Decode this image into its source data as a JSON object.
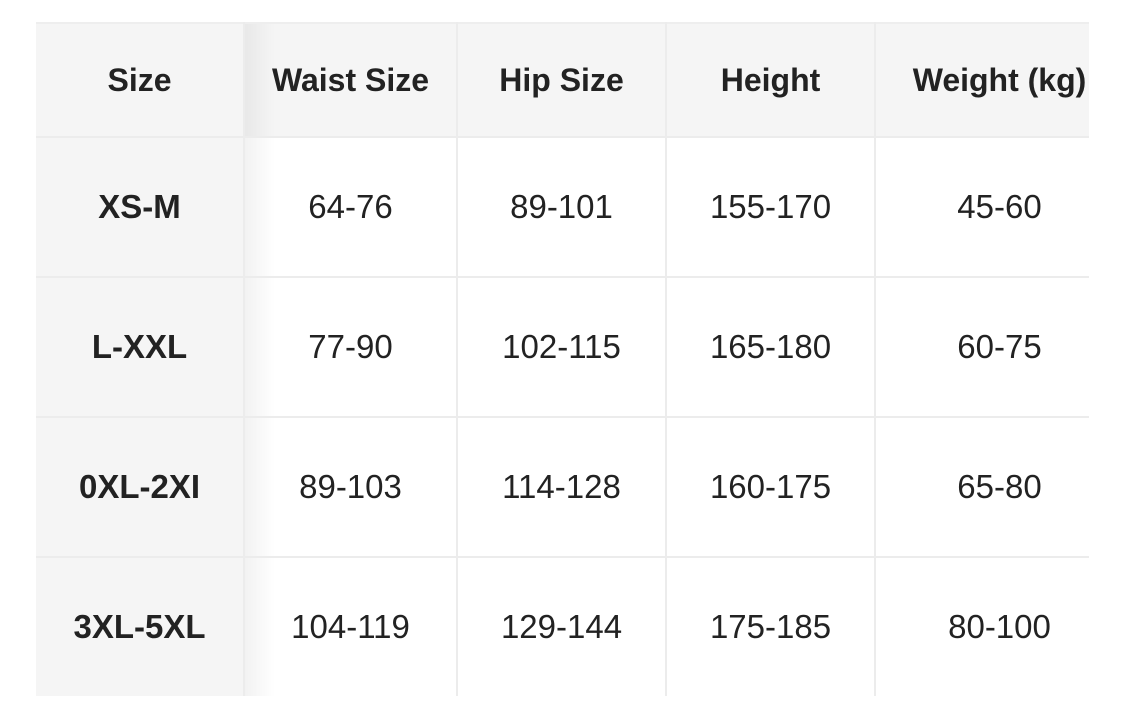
{
  "table": {
    "headers": [
      "Size",
      "Waist Size",
      "Hip Size",
      "Height",
      "Weight (kg)"
    ],
    "rows": [
      [
        "XS-M",
        "64-76",
        "89-101",
        "155-170",
        "45-60"
      ],
      [
        "L-XXL",
        "77-90",
        "102-115",
        "165-180",
        "60-75"
      ],
      [
        "0XL-2XI",
        "89-103",
        "114-128",
        "160-175",
        "65-80"
      ],
      [
        "3XL-5XL",
        "104-119",
        "129-144",
        "175-185",
        "80-100"
      ]
    ]
  }
}
